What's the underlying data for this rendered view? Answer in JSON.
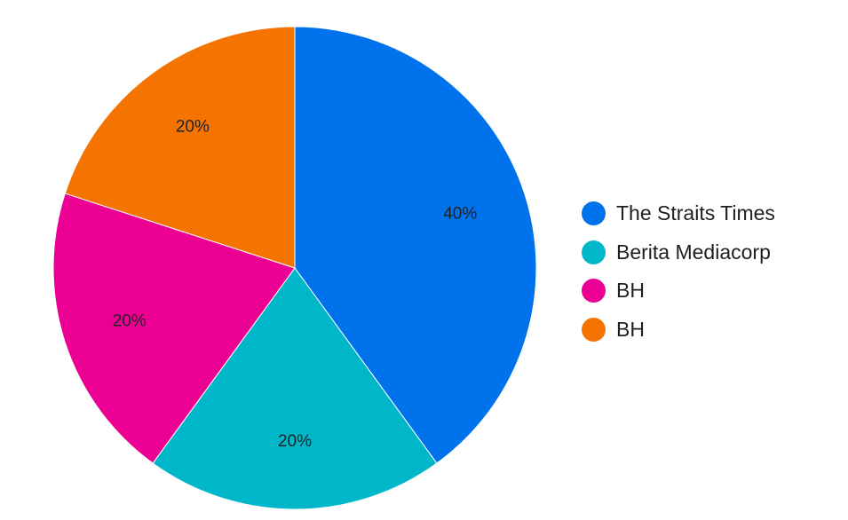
{
  "chart_data": {
    "type": "pie",
    "title": "",
    "series": [
      {
        "name": "The Straits Times",
        "value": 40,
        "label": "40%",
        "color": "#0073ec"
      },
      {
        "name": "Berita Mediacorp",
        "value": 20,
        "label": "20%",
        "color": "#00b7c9"
      },
      {
        "name": "BH",
        "value": 20,
        "label": "20%",
        "color": "#ec0093"
      },
      {
        "name": "BH",
        "value": 20,
        "label": "20%",
        "color": "#f57300"
      }
    ],
    "start_angle_deg": 0,
    "direction": "clockwise",
    "legend": {
      "placement": "right"
    }
  }
}
